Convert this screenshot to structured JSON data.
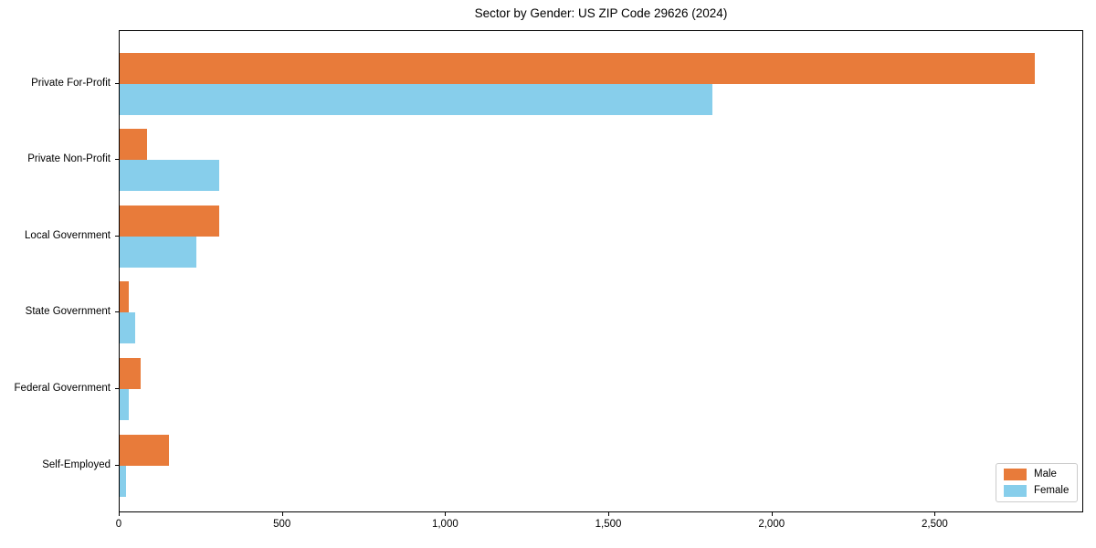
{
  "chart_data": {
    "type": "bar",
    "orientation": "horizontal",
    "title": "Sector by Gender: US ZIP Code 29626 (2024)",
    "categories": [
      "Private For-Profit",
      "Private Non-Profit",
      "Local Government",
      "State Government",
      "Federal Government",
      "Self-Employed"
    ],
    "series": [
      {
        "name": "Male",
        "color": "#e87b3a",
        "values": [
          2810,
          85,
          305,
          28,
          65,
          152
        ]
      },
      {
        "name": "Female",
        "color": "#87ceeb",
        "values": [
          1820,
          305,
          235,
          48,
          28,
          20
        ]
      }
    ],
    "xlabel": "",
    "ylabel": "",
    "xlim": [
      0,
      2955
    ],
    "xticks": [
      0,
      500,
      1000,
      1500,
      2000,
      2500
    ],
    "xtick_labels": [
      "0",
      "500",
      "1,000",
      "1,500",
      "2,000",
      "2,500"
    ],
    "grid": false,
    "legend": {
      "position": "lower right",
      "entries": [
        "Male",
        "Female"
      ]
    }
  }
}
